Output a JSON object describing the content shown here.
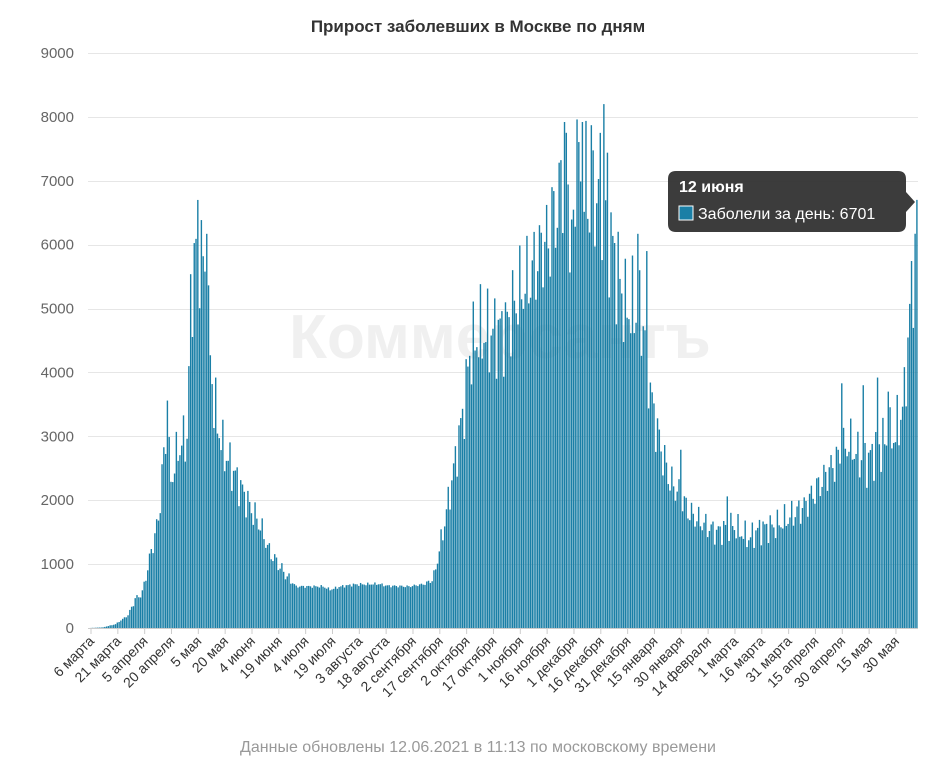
{
  "chart_data": {
    "type": "bar",
    "title": "Прирост заболевших в Москве по дням",
    "footer": "Данные обновлены 12.06.2021 в 11:13 по московскому времени",
    "watermark": "Коммерсантъ",
    "series_name": "Заболели за день",
    "start_date": "2020-03-06",
    "ylim": [
      0,
      9000
    ],
    "yticks": [
      0,
      1000,
      2000,
      3000,
      4000,
      5000,
      6000,
      7000,
      8000,
      9000
    ],
    "grid": true,
    "bar_color": "#1a7fa6",
    "tooltip": {
      "date": "12 июня",
      "label": "Заболели за день: 6701",
      "value": 6701
    },
    "x_tick_labels": [
      "6 марта",
      "21 марта",
      "5 апреля",
      "20 апреля",
      "5 мая",
      "20 мая",
      "4 июня",
      "19 июня",
      "4 июля",
      "19 июля",
      "3 августа",
      "18 августа",
      "2 сентября",
      "17 сентября",
      "2 октября",
      "17 октября",
      "1 ноября",
      "16 ноября",
      "1 декабря",
      "16 декабря",
      "31 декабря",
      "15 января",
      "30 января",
      "14 февраля",
      "1 марта",
      "16 марта",
      "31 марта",
      "15 апреля",
      "30 апреля",
      "15 мая",
      "30 мая"
    ],
    "anchors": [
      [
        "2020-03-06",
        0
      ],
      [
        "2020-03-14",
        10
      ],
      [
        "2020-03-21",
        60
      ],
      [
        "2020-03-28",
        200
      ],
      [
        "2020-04-01",
        450
      ],
      [
        "2020-04-05",
        550
      ],
      [
        "2020-04-10",
        1200
      ],
      [
        "2020-04-14",
        1700
      ],
      [
        "2020-04-17",
        2700
      ],
      [
        "2020-04-19",
        3000
      ],
      [
        "2020-04-21",
        2300
      ],
      [
        "2020-04-25",
        2800
      ],
      [
        "2020-04-30",
        3000
      ],
      [
        "2020-05-02",
        5000
      ],
      [
        "2020-05-04",
        5800
      ],
      [
        "2020-05-07",
        6000
      ],
      [
        "2020-05-10",
        5500
      ],
      [
        "2020-05-12",
        4700
      ],
      [
        "2020-05-15",
        3500
      ],
      [
        "2020-05-20",
        2800
      ],
      [
        "2020-05-25",
        2500
      ],
      [
        "2020-05-30",
        2200
      ],
      [
        "2020-06-04",
        1900
      ],
      [
        "2020-06-10",
        1600
      ],
      [
        "2020-06-15",
        1200
      ],
      [
        "2020-06-20",
        1000
      ],
      [
        "2020-06-25",
        800
      ],
      [
        "2020-06-30",
        650
      ],
      [
        "2020-07-10",
        650
      ],
      [
        "2020-07-15",
        650
      ],
      [
        "2020-07-19",
        600
      ],
      [
        "2020-07-25",
        650
      ],
      [
        "2020-08-01",
        680
      ],
      [
        "2020-08-15",
        690
      ],
      [
        "2020-08-20",
        660
      ],
      [
        "2020-09-01",
        650
      ],
      [
        "2020-09-10",
        690
      ],
      [
        "2020-09-15",
        800
      ],
      [
        "2020-09-20",
        1500
      ],
      [
        "2020-09-25",
        2300
      ],
      [
        "2020-10-02",
        3500
      ],
      [
        "2020-10-05",
        4300
      ],
      [
        "2020-10-10",
        4600
      ],
      [
        "2020-10-17",
        4600
      ],
      [
        "2020-10-25",
        4700
      ],
      [
        "2020-11-01",
        5200
      ],
      [
        "2020-11-08",
        5500
      ],
      [
        "2020-11-15",
        6000
      ],
      [
        "2020-11-20",
        6100
      ],
      [
        "2020-11-24",
        6800
      ],
      [
        "2020-11-28",
        7200
      ],
      [
        "2020-12-01",
        6000
      ],
      [
        "2020-12-05",
        6800
      ],
      [
        "2020-12-08",
        7100
      ],
      [
        "2020-12-12",
        6300
      ],
      [
        "2020-12-16",
        7000
      ],
      [
        "2020-12-20",
        6500
      ],
      [
        "2020-12-25",
        5800
      ],
      [
        "2020-12-31",
        5000
      ],
      [
        "2021-01-05",
        5000
      ],
      [
        "2021-01-10",
        4800
      ],
      [
        "2021-01-15",
        3500
      ],
      [
        "2021-01-20",
        2800
      ],
      [
        "2021-01-25",
        2300
      ],
      [
        "2021-01-30",
        2100
      ],
      [
        "2021-02-05",
        1800
      ],
      [
        "2021-02-14",
        1600
      ],
      [
        "2021-02-20",
        1500
      ],
      [
        "2021-03-01",
        1600
      ],
      [
        "2021-03-10",
        1400
      ],
      [
        "2021-03-16",
        1550
      ],
      [
        "2021-03-25",
        1600
      ],
      [
        "2021-03-31",
        1700
      ],
      [
        "2021-04-10",
        1900
      ],
      [
        "2021-04-15",
        2100
      ],
      [
        "2021-04-25",
        2500
      ],
      [
        "2021-04-30",
        2700
      ],
      [
        "2021-05-05",
        2900
      ],
      [
        "2021-05-10",
        2700
      ],
      [
        "2021-05-15",
        2600
      ],
      [
        "2021-05-20",
        2800
      ],
      [
        "2021-05-25",
        2900
      ],
      [
        "2021-05-30",
        3000
      ],
      [
        "2021-06-02",
        3200
      ],
      [
        "2021-06-05",
        3600
      ],
      [
        "2021-06-07",
        4500
      ],
      [
        "2021-06-09",
        5300
      ],
      [
        "2021-06-11",
        5850
      ],
      [
        "2021-06-12",
        6701
      ]
    ],
    "peaks": [
      [
        "2020-04-19",
        3560
      ],
      [
        "2020-05-06",
        6700
      ],
      [
        "2020-05-11",
        6170
      ],
      [
        "2020-11-20",
        6900
      ],
      [
        "2020-11-27",
        7920
      ],
      [
        "2020-12-04",
        7960
      ],
      [
        "2020-12-07",
        7920
      ],
      [
        "2020-12-12",
        7870
      ],
      [
        "2020-12-17",
        7750
      ],
      [
        "2020-12-19",
        8200
      ],
      [
        "2020-12-21",
        7440
      ],
      [
        "2021-01-07",
        6170
      ],
      [
        "2021-01-12",
        5900
      ],
      [
        "2021-01-31",
        2790
      ],
      [
        "2021-02-26",
        2060
      ],
      [
        "2021-05-01",
        3830
      ],
      [
        "2021-05-13",
        3800
      ],
      [
        "2021-05-21",
        3920
      ],
      [
        "2021-05-27",
        3700
      ]
    ]
  }
}
